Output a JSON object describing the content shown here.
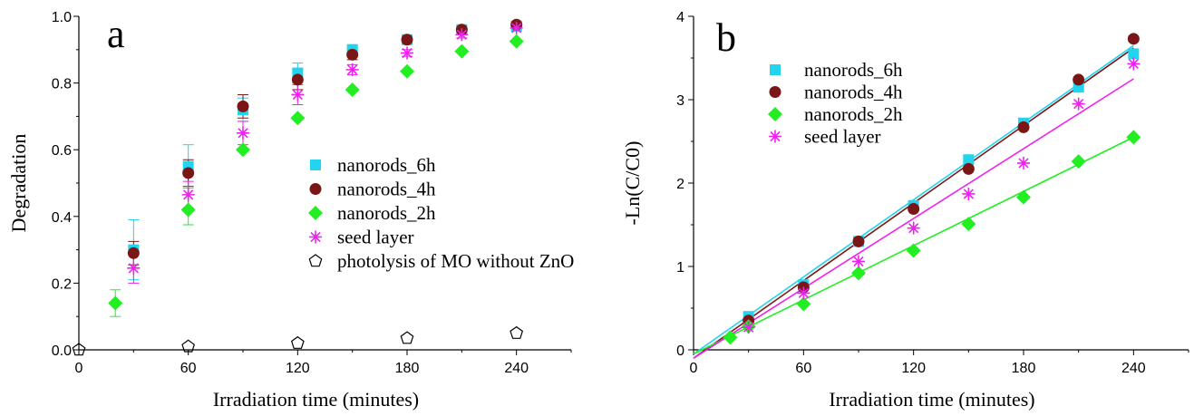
{
  "chart_data": [
    {
      "type": "scatter",
      "panel_label": "a",
      "xlabel": "Irradiation time (minutes)",
      "ylabel": "Degradation",
      "xlim": [
        0,
        270
      ],
      "ylim": [
        0,
        1.0
      ],
      "xticks": [
        0,
        60,
        120,
        180,
        240
      ],
      "yticks": [
        0.0,
        0.2,
        0.4,
        0.6,
        0.8,
        1.0
      ],
      "xtick_labels": [
        "0",
        "60",
        "120",
        "180",
        "240"
      ],
      "ytick_labels": [
        "0.0",
        "0.2",
        "0.4",
        "0.6",
        "0.8",
        "1.0"
      ],
      "legend_position": "center-right",
      "series": [
        {
          "name": "nanorods_6h",
          "marker": "square",
          "color": "#22d4ee",
          "x": [
            30,
            60,
            90,
            120,
            150,
            180,
            210,
            240
          ],
          "y": [
            0.3,
            0.55,
            0.72,
            0.83,
            0.9,
            0.93,
            0.96,
            0.97
          ],
          "err": [
            0.09,
            0.065,
            0.035,
            0.03,
            0.015,
            0.01,
            0.01,
            0.005
          ]
        },
        {
          "name": "nanorods_4h",
          "marker": "circle",
          "color": "#7a1616",
          "x": [
            30,
            60,
            90,
            120,
            150,
            180,
            210,
            240
          ],
          "y": [
            0.29,
            0.53,
            0.73,
            0.81,
            0.885,
            0.93,
            0.96,
            0.975
          ],
          "err": [
            0.035,
            0.04,
            0.035,
            0.03,
            0.015,
            0.01,
            0.01,
            0.005
          ]
        },
        {
          "name": "nanorods_2h",
          "marker": "diamond",
          "color": "#22ee22",
          "x": [
            20,
            60,
            90,
            120,
            150,
            180,
            210,
            240
          ],
          "y": [
            0.14,
            0.42,
            0.6,
            0.695,
            0.78,
            0.835,
            0.895,
            0.925
          ],
          "err": [
            0.04,
            0.045,
            0.0,
            0.0,
            0.0,
            0.0,
            0.0,
            0.0
          ]
        },
        {
          "name": "seed layer",
          "marker": "asterisk",
          "color": "#ee22ee",
          "x": [
            30,
            60,
            90,
            120,
            150,
            180,
            210,
            240
          ],
          "y": [
            0.245,
            0.465,
            0.65,
            0.765,
            0.84,
            0.89,
            0.945,
            0.965
          ],
          "err": [
            0.045,
            0.04,
            0.035,
            0.03,
            0.015,
            0.01,
            0.01,
            0.005
          ]
        },
        {
          "name": "photolysis of MO without ZnO",
          "marker": "pentagon",
          "color": "#000000",
          "x": [
            0,
            60,
            120,
            180,
            240
          ],
          "y": [
            0.0,
            0.01,
            0.02,
            0.035,
            0.05
          ],
          "err": [
            0,
            0,
            0,
            0,
            0
          ]
        }
      ]
    },
    {
      "type": "scatter",
      "panel_label": "b",
      "xlabel": "Irradiation time (minutes)",
      "ylabel": "-Ln(C/C0)",
      "xlim": [
        0,
        270
      ],
      "ylim": [
        0,
        4
      ],
      "xticks": [
        0,
        60,
        120,
        180,
        240
      ],
      "yticks": [
        0,
        1,
        2,
        3,
        4
      ],
      "xtick_labels": [
        "0",
        "60",
        "120",
        "180",
        "240"
      ],
      "ytick_labels": [
        "0",
        "1",
        "2",
        "3",
        "4"
      ],
      "legend_position": "top-left",
      "series": [
        {
          "name": "nanorods_6h",
          "marker": "square",
          "color": "#22d4ee",
          "x": [
            30,
            60,
            90,
            120,
            150,
            180,
            210,
            240
          ],
          "y": [
            0.4,
            0.78,
            1.3,
            1.73,
            2.28,
            2.72,
            3.15,
            3.55
          ],
          "fit": [
            [
              0,
              -0.05
            ],
            [
              240,
              3.65
            ]
          ]
        },
        {
          "name": "nanorods_4h",
          "marker": "circle",
          "color": "#7a1616",
          "x": [
            30,
            60,
            90,
            120,
            150,
            180,
            210,
            240
          ],
          "y": [
            0.35,
            0.75,
            1.3,
            1.69,
            2.17,
            2.67,
            3.24,
            3.73
          ],
          "fit": [
            [
              0,
              -0.1
            ],
            [
              240,
              3.62
            ]
          ]
        },
        {
          "name": "nanorods_2h",
          "marker": "diamond",
          "color": "#22ee22",
          "x": [
            20,
            30,
            60,
            90,
            120,
            150,
            180,
            210,
            240
          ],
          "y": [
            0.15,
            0.28,
            0.55,
            0.92,
            1.19,
            1.51,
            1.83,
            2.26,
            2.55
          ],
          "fit": [
            [
              0,
              -0.05
            ],
            [
              240,
              2.55
            ]
          ]
        },
        {
          "name": "seed layer",
          "marker": "asterisk",
          "color": "#ee22ee",
          "x": [
            30,
            60,
            90,
            120,
            150,
            180,
            210,
            240
          ],
          "y": [
            0.27,
            0.68,
            1.06,
            1.46,
            1.87,
            2.24,
            2.95,
            3.43
          ],
          "fit": [
            [
              0,
              -0.1
            ],
            [
              240,
              3.25
            ]
          ]
        }
      ]
    }
  ]
}
